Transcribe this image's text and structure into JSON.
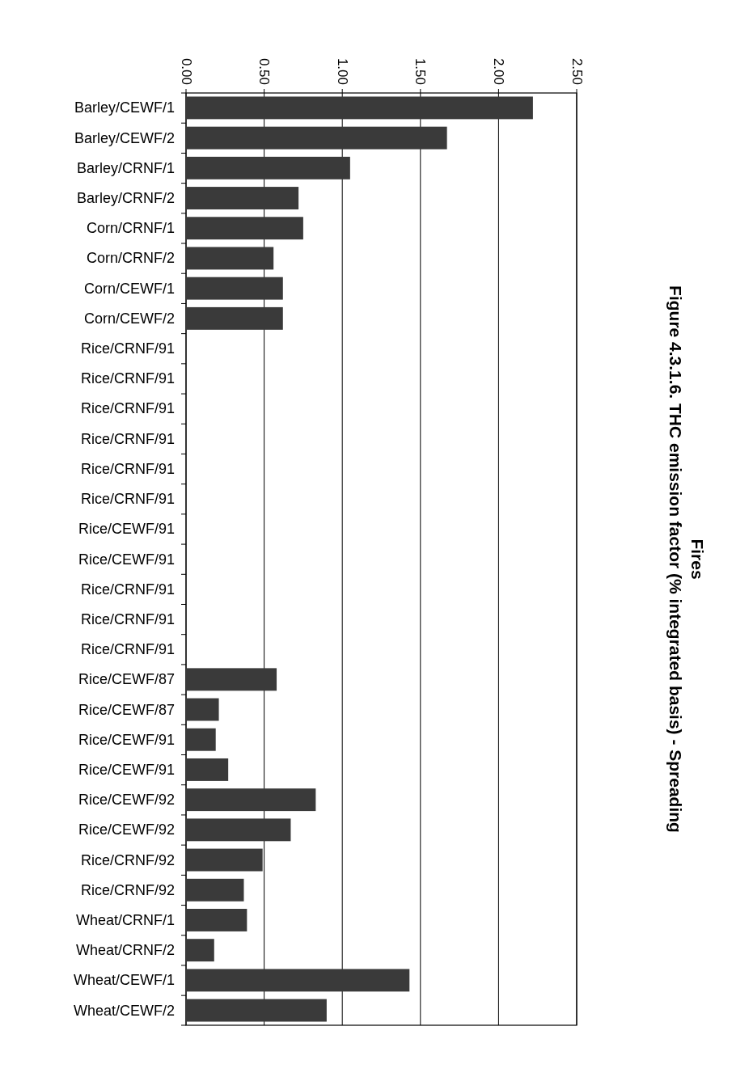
{
  "chart_data": {
    "type": "bar",
    "orientation": "horizontal",
    "title": "Figure 4.3.1.6.  THC emission factor (% integrated basis) - Spreading Fires",
    "categories": [
      "Barley/CEWF/1",
      "Barley/CEWF/2",
      "Barley/CRNF/1",
      "Barley/CRNF/2",
      "Corn/CRNF/1",
      "Corn/CRNF/2",
      "Corn/CEWF/1",
      "Corn/CEWF/2",
      "Rice/CRNF/91",
      "Rice/CRNF/91",
      "Rice/CRNF/91",
      "Rice/CRNF/91",
      "Rice/CRNF/91",
      "Rice/CRNF/91",
      "Rice/CEWF/91",
      "Rice/CEWF/91",
      "Rice/CRNF/91",
      "Rice/CRNF/91",
      "Rice/CRNF/91",
      "Rice/CEWF/87",
      "Rice/CEWF/87",
      "Rice/CEWF/91",
      "Rice/CEWF/91",
      "Rice/CEWF/92",
      "Rice/CEWF/92",
      "Rice/CRNF/92",
      "Rice/CRNF/92",
      "Wheat/CRNF/1",
      "Wheat/CRNF/2",
      "Wheat/CEWF/1",
      "Wheat/CEWF/2"
    ],
    "values": [
      2.22,
      1.67,
      1.05,
      0.72,
      0.75,
      0.56,
      0.62,
      0.62,
      null,
      null,
      null,
      null,
      null,
      null,
      null,
      null,
      null,
      null,
      null,
      0.58,
      0.21,
      0.19,
      0.27,
      0.83,
      0.67,
      0.49,
      0.37,
      0.39,
      0.18,
      1.43,
      0.9
    ],
    "color": "#3a3a3a",
    "xlim": [
      0,
      2.5
    ],
    "xticks": [
      {
        "value": 0,
        "label": "0.00"
      },
      {
        "value": 0.5,
        "label": "0.50"
      },
      {
        "value": 1,
        "label": "1.00"
      },
      {
        "value": 1.5,
        "label": "1.50"
      },
      {
        "value": 2,
        "label": "2.00"
      },
      {
        "value": 2.5,
        "label": "2.50"
      }
    ],
    "grid": "x"
  }
}
